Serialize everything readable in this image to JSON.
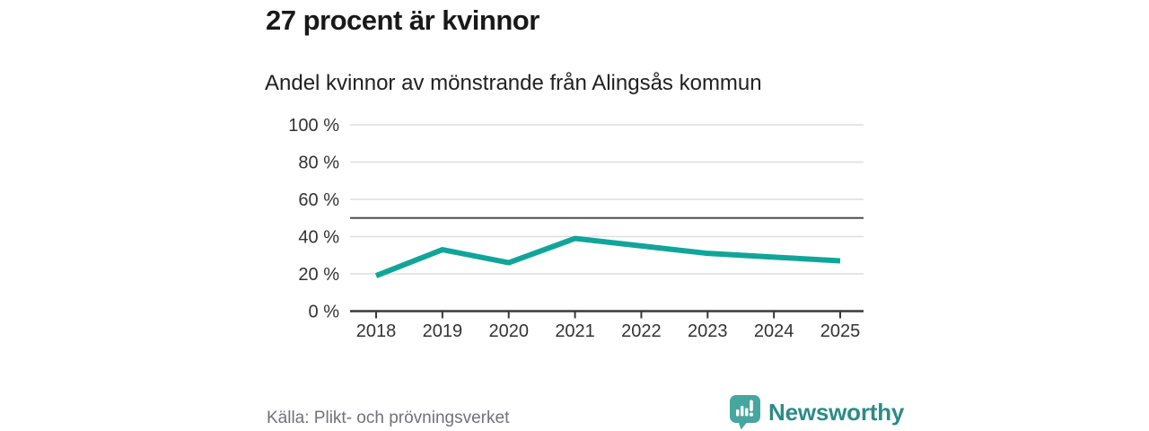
{
  "header": {
    "title": "27 procent är kvinnor",
    "subtitle": "Andel kvinnor av mönstrande från Alingsås kommun"
  },
  "chart_data": {
    "type": "line",
    "title": "27 procent är kvinnor",
    "subtitle": "Andel kvinnor av mönstrande från Alingsås kommun",
    "categories": [
      "2018",
      "2019",
      "2020",
      "2021",
      "2022",
      "2023",
      "2024",
      "2025"
    ],
    "series": [
      {
        "name": "Andel kvinnor av mönstrande",
        "values": [
          19,
          33,
          26,
          39,
          35,
          31,
          29,
          27
        ]
      }
    ],
    "unit": "%",
    "ylim": [
      0,
      100
    ],
    "y_ticks": [
      0,
      20,
      40,
      60,
      80,
      100
    ],
    "y_tick_suffix": " %",
    "reference_line": {
      "value": 50
    },
    "grid": true,
    "legend": "none"
  },
  "colors": {
    "line": "#11a59a",
    "grid": "#dedede",
    "axis": "#383838",
    "reference": "#4e4e4e",
    "brand": "#47a69f",
    "brand_text": "#2d8b86",
    "source_text": "#71717b"
  },
  "footer": {
    "source": "Källa: Plikt- och prövningsverket",
    "brand": "Newsworthy"
  }
}
